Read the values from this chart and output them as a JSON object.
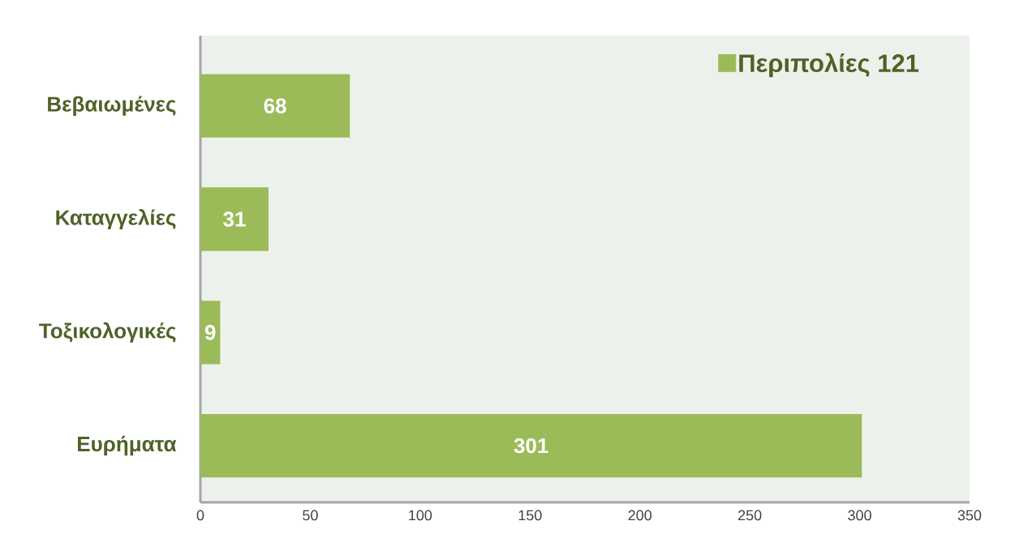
{
  "chart_data": {
    "type": "bar",
    "orientation": "horizontal",
    "categories": [
      "Βεβαιωμένες",
      "Καταγγελίες",
      "Τοξικολογικές",
      "Ευρήματα"
    ],
    "series": [
      {
        "name": "Περιπολίες 121",
        "color": "#9bbb59",
        "values": [
          68,
          31,
          9,
          301
        ]
      }
    ],
    "xlim": [
      0,
      350
    ],
    "xticks": [
      0,
      50,
      100,
      150,
      200,
      250,
      300,
      350
    ],
    "data_labels": true,
    "legend": "top right"
  }
}
